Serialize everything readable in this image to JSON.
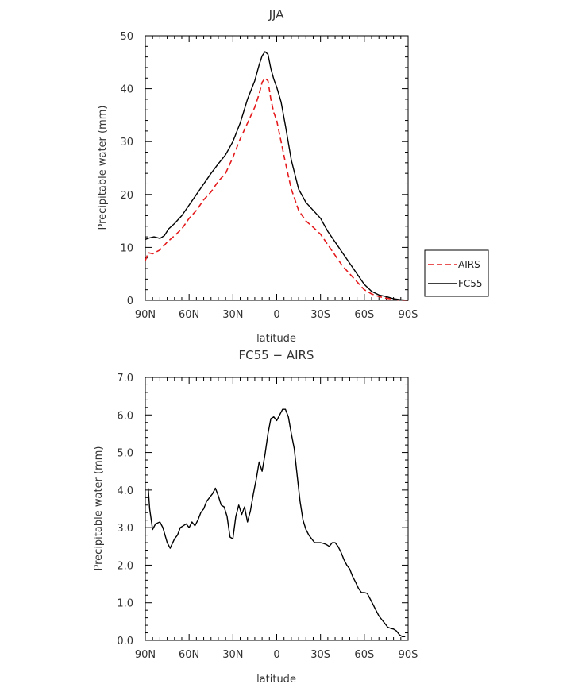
{
  "chart_data": [
    {
      "type": "line",
      "title": "JJA",
      "xlabel": "latitude",
      "ylabel": "Precipitable water (mm)",
      "xlim": [
        90,
        -90
      ],
      "ylim": [
        0,
        50
      ],
      "x_ticks": [
        90,
        60,
        30,
        0,
        -30,
        -60,
        -90
      ],
      "x_tick_labels": [
        "90N",
        "60N",
        "30N",
        "0",
        "30S",
        "60S",
        "90S"
      ],
      "y_ticks": [
        0,
        10,
        20,
        30,
        40,
        50
      ],
      "y_tick_labels": [
        "0",
        "10",
        "20",
        "30",
        "40",
        "50"
      ],
      "legend": {
        "position": "right",
        "entries": [
          "AIRS",
          "FC55"
        ]
      },
      "series": [
        {
          "name": "AIRS",
          "color": "#e41a1c",
          "dash": "dashed",
          "x": [
            90,
            88,
            85,
            80,
            75,
            70,
            65,
            60,
            55,
            50,
            45,
            40,
            35,
            30,
            25,
            20,
            15,
            12,
            10,
            8,
            6,
            4,
            2,
            0,
            -3,
            -6,
            -10,
            -15,
            -20,
            -25,
            -30,
            -35,
            -40,
            -45,
            -50,
            -55,
            -60,
            -65,
            -70,
            -75,
            -80,
            -85,
            -90
          ],
          "y": [
            7.5,
            9,
            8.8,
            9.5,
            11,
            12.2,
            13.5,
            15.5,
            17,
            19,
            20.5,
            22.5,
            24,
            27,
            30.5,
            33.5,
            36.5,
            39,
            41.2,
            42,
            41.5,
            38,
            35.5,
            34,
            30,
            26,
            21,
            17,
            15,
            13.8,
            12.5,
            10.5,
            8.5,
            6.5,
            5,
            3.5,
            2,
            1.2,
            0.7,
            0.4,
            0.2,
            0,
            0
          ]
        },
        {
          "name": "FC55",
          "color": "#000000",
          "dash": "solid",
          "x": [
            90,
            87,
            84,
            80,
            77,
            74,
            70,
            65,
            60,
            55,
            50,
            45,
            40,
            35,
            30,
            25,
            20,
            15,
            12,
            10,
            8,
            6,
            4,
            2,
            0,
            -3,
            -6,
            -10,
            -15,
            -20,
            -25,
            -30,
            -35,
            -40,
            -45,
            -50,
            -55,
            -60,
            -65,
            -70,
            -75,
            -80,
            -85,
            -90
          ],
          "y": [
            11.5,
            11.8,
            12,
            11.7,
            12.2,
            13.5,
            14.5,
            16,
            18,
            20,
            22,
            24,
            25.8,
            27.5,
            30,
            33.5,
            38,
            41.5,
            44.5,
            46.2,
            47,
            46.5,
            43.8,
            41.8,
            40.3,
            37.5,
            33,
            26.5,
            21,
            18.5,
            17,
            15.5,
            13,
            11,
            9,
            7,
            5,
            3,
            1.7,
            1,
            0.7,
            0.3,
            0.1,
            0
          ]
        }
      ]
    },
    {
      "type": "line",
      "title": "FC55 − AIRS",
      "xlabel": "latitude",
      "ylabel": "Precipitable water (mm)",
      "xlim": [
        90,
        -90
      ],
      "ylim": [
        0,
        7
      ],
      "x_ticks": [
        90,
        60,
        30,
        0,
        -30,
        -60,
        -90
      ],
      "x_tick_labels": [
        "90N",
        "60N",
        "30N",
        "0",
        "30S",
        "60S",
        "90S"
      ],
      "y_ticks": [
        0,
        1,
        2,
        3,
        4,
        5,
        6,
        7
      ],
      "y_tick_labels": [
        "0.0",
        "1.0",
        "2.0",
        "3.0",
        "4.0",
        "5.0",
        "6.0",
        "7.0"
      ],
      "series": [
        {
          "color": "#000000",
          "dash": "solid",
          "x": [
            88,
            87,
            85,
            83,
            80,
            78,
            75,
            73,
            70,
            68,
            66,
            64,
            62,
            60,
            58,
            56,
            54,
            52,
            50,
            48,
            46,
            44,
            42,
            40,
            38,
            36,
            34,
            32,
            30,
            28,
            26,
            24,
            22,
            20,
            18,
            16,
            14,
            12,
            10,
            8,
            6,
            4,
            2,
            0,
            -2,
            -4,
            -6,
            -8,
            -10,
            -12,
            -14,
            -16,
            -18,
            -20,
            -22,
            -24,
            -26,
            -28,
            -30,
            -32,
            -34,
            -36,
            -38,
            -40,
            -42,
            -44,
            -46,
            -48,
            -50,
            -52,
            -54,
            -56,
            -58,
            -60,
            -62,
            -64,
            -66,
            -68,
            -70,
            -72,
            -74,
            -76,
            -78,
            -80,
            -82,
            -84,
            -86,
            -88
          ],
          "y": [
            4.05,
            3.5,
            2.95,
            3.1,
            3.15,
            3.0,
            2.6,
            2.45,
            2.7,
            2.8,
            3.0,
            3.05,
            3.1,
            3.0,
            3.15,
            3.05,
            3.2,
            3.4,
            3.5,
            3.7,
            3.8,
            3.9,
            4.05,
            3.85,
            3.6,
            3.55,
            3.3,
            2.75,
            2.7,
            3.3,
            3.6,
            3.35,
            3.55,
            3.15,
            3.45,
            3.9,
            4.3,
            4.75,
            4.5,
            4.95,
            5.5,
            5.9,
            5.95,
            5.85,
            6.0,
            6.15,
            6.15,
            5.95,
            5.5,
            5.1,
            4.4,
            3.7,
            3.2,
            2.95,
            2.8,
            2.7,
            2.6,
            2.6,
            2.6,
            2.58,
            2.55,
            2.5,
            2.6,
            2.6,
            2.5,
            2.35,
            2.15,
            2.0,
            1.9,
            1.7,
            1.55,
            1.38,
            1.27,
            1.27,
            1.25,
            1.1,
            0.95,
            0.8,
            0.65,
            0.55,
            0.45,
            0.35,
            0.32,
            0.3,
            0.25,
            0.15,
            0.1,
            0.1
          ]
        }
      ]
    }
  ]
}
